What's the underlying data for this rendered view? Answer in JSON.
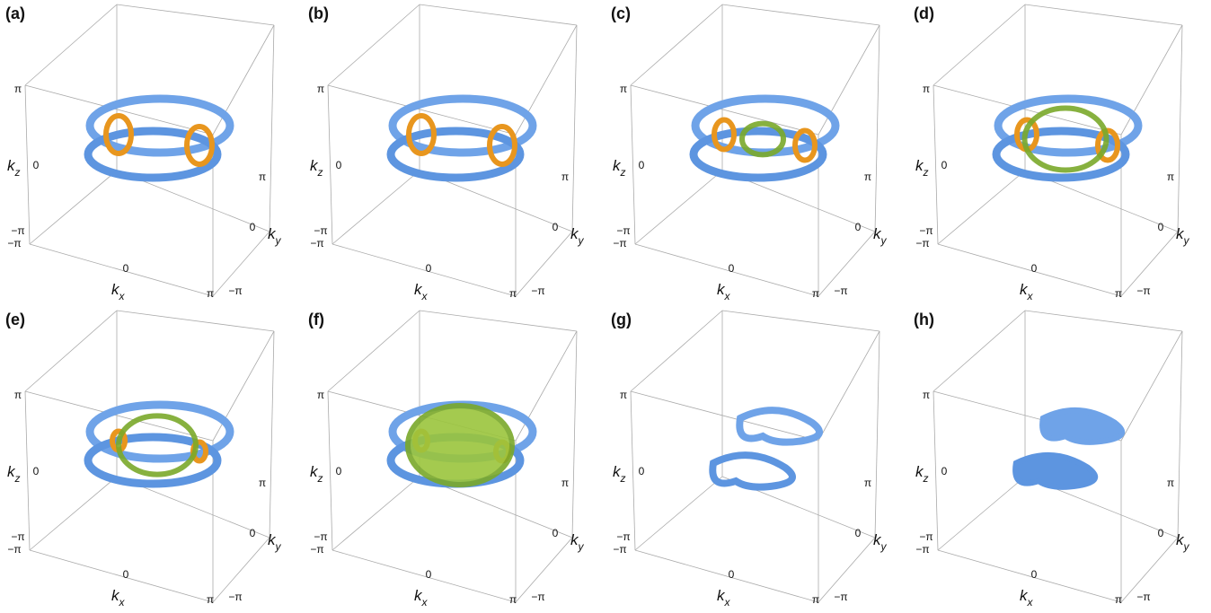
{
  "panels": [
    "(a)",
    "(b)",
    "(c)",
    "(d)",
    "(e)",
    "(f)",
    "(g)",
    "(h)"
  ],
  "ticks": {
    "min": "−π",
    "mid": "0",
    "max": "π"
  },
  "axis_labels": {
    "x": {
      "symbol": "k",
      "subscript": "x"
    },
    "y": {
      "symbol": "k",
      "subscript": "y"
    },
    "z": {
      "symbol": "k",
      "subscript": "z"
    }
  }
}
